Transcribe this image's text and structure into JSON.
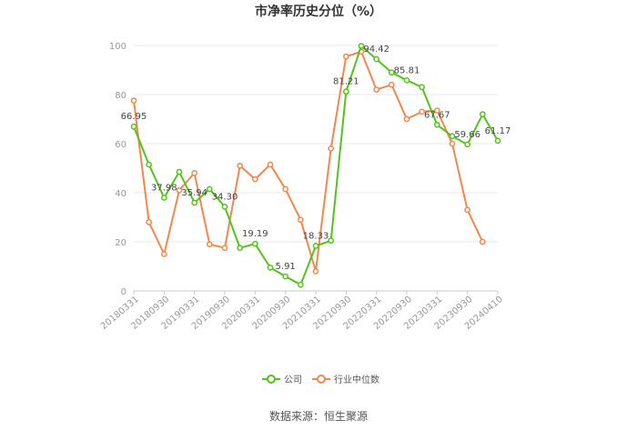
{
  "chart_data": {
    "type": "line",
    "title": "市净率历史分位（%）",
    "xlabel": "",
    "ylabel": "",
    "ylim": [
      0,
      100
    ],
    "yticks": [
      0,
      20,
      40,
      60,
      80,
      100
    ],
    "grid": "horizontal",
    "legend_position": "bottom",
    "source": "数据来源：恒生聚源",
    "x": [
      "20180331",
      "20180630",
      "20180930",
      "20181231",
      "20190331",
      "20190630",
      "20190930",
      "20191231",
      "20200331",
      "20200630",
      "20200930",
      "20201231",
      "20210331",
      "20210630",
      "20210930",
      "20211231",
      "20220331",
      "20220630",
      "20220930",
      "20221231",
      "20230331",
      "20230630",
      "20230930",
      "20231231",
      "20240410"
    ],
    "xtick_labels": [
      "20180331",
      "20180930",
      "20190331",
      "20190930",
      "20200331",
      "20200930",
      "20210331",
      "20210930",
      "20220331",
      "20220930",
      "20230331",
      "20230930",
      "20240410"
    ],
    "series": [
      {
        "name": "公司",
        "color": "#52c41a",
        "values": [
          66.95,
          51.5,
          37.98,
          48.5,
          35.94,
          41.5,
          34.3,
          17.5,
          19.19,
          9.5,
          5.91,
          2.5,
          18.33,
          20.5,
          81.21,
          99.8,
          94.42,
          89.0,
          85.81,
          83.0,
          67.67,
          63.0,
          59.66,
          72.0,
          61.17
        ],
        "data_labels": [
          {
            "index": 0,
            "text": "66.95"
          },
          {
            "index": 2,
            "text": "37.98"
          },
          {
            "index": 4,
            "text": "35.94"
          },
          {
            "index": 6,
            "text": "34.30"
          },
          {
            "index": 8,
            "text": "19.19"
          },
          {
            "index": 10,
            "text": "5.91"
          },
          {
            "index": 12,
            "text": "18.33"
          },
          {
            "index": 14,
            "text": "81.21"
          },
          {
            "index": 16,
            "text": "94.42"
          },
          {
            "index": 18,
            "text": "85.81"
          },
          {
            "index": 20,
            "text": "67.67"
          },
          {
            "index": 22,
            "text": "59.66"
          },
          {
            "index": 24,
            "text": "61.17"
          }
        ]
      },
      {
        "name": "行业中位数",
        "color": "#f4874b",
        "values": [
          77.5,
          28.0,
          15.0,
          41.0,
          48.0,
          19.0,
          17.5,
          51.0,
          45.5,
          51.5,
          41.5,
          29.0,
          8.0,
          58.0,
          95.5,
          97.5,
          82.0,
          84.0,
          70.0,
          73.0,
          73.5,
          60.0,
          33.0,
          20.0,
          null
        ]
      }
    ]
  }
}
